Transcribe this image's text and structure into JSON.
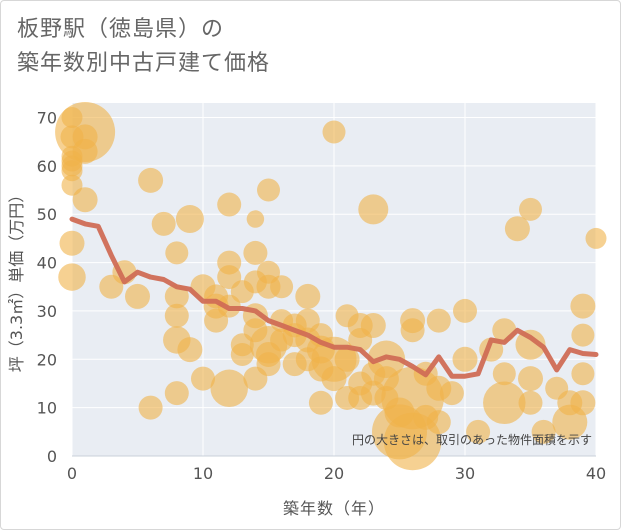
{
  "title_lines": [
    "板野駅（徳島県）の",
    "築年数別中古戸建て価格"
  ],
  "chart_data": {
    "type": "scatter",
    "title": "板野駅（徳島県）の築年数別中古戸建て価格",
    "xlabel": "築年数（年）",
    "ylabel": "坪（3.3㎡）単価（万円）",
    "xlim": [
      0,
      40
    ],
    "ylim": [
      0,
      73
    ],
    "xticks": [
      0,
      10,
      20,
      30,
      40
    ],
    "yticks": [
      0,
      10,
      20,
      30,
      40,
      50,
      60,
      70
    ],
    "grid": true,
    "annotation": "円の大きさは、取引のあった物件面積を示す",
    "colors": {
      "bubble": "#f0b24a",
      "line": "#d06d55",
      "plot_bg": "#e9edf3",
      "grid": "#ffffff"
    },
    "series": [
      {
        "kind": "bubble",
        "points": [
          {
            "x": 0,
            "y": 70,
            "s": 0.22
          },
          {
            "x": 0,
            "y": 66,
            "s": 0.26
          },
          {
            "x": 0,
            "y": 62,
            "s": 0.22
          },
          {
            "x": 0,
            "y": 61,
            "s": 0.22
          },
          {
            "x": 0,
            "y": 60,
            "s": 0.22
          },
          {
            "x": 0,
            "y": 59,
            "s": 0.22
          },
          {
            "x": 0,
            "y": 56,
            "s": 0.22
          },
          {
            "x": 0,
            "y": 44,
            "s": 0.3
          },
          {
            "x": 0,
            "y": 37,
            "s": 0.35
          },
          {
            "x": 1,
            "y": 67,
            "s": 1.0
          },
          {
            "x": 1,
            "y": 66,
            "s": 0.3
          },
          {
            "x": 1,
            "y": 63,
            "s": 0.3
          },
          {
            "x": 1,
            "y": 53,
            "s": 0.3
          },
          {
            "x": 3,
            "y": 35,
            "s": 0.28
          },
          {
            "x": 4,
            "y": 38,
            "s": 0.28
          },
          {
            "x": 5,
            "y": 33,
            "s": 0.3
          },
          {
            "x": 6,
            "y": 57,
            "s": 0.3
          },
          {
            "x": 6,
            "y": 10,
            "s": 0.28
          },
          {
            "x": 7,
            "y": 48,
            "s": 0.28
          },
          {
            "x": 8,
            "y": 42,
            "s": 0.26
          },
          {
            "x": 8,
            "y": 33,
            "s": 0.28
          },
          {
            "x": 8,
            "y": 29,
            "s": 0.28
          },
          {
            "x": 8,
            "y": 24,
            "s": 0.35
          },
          {
            "x": 8,
            "y": 13,
            "s": 0.28
          },
          {
            "x": 9,
            "y": 49,
            "s": 0.36
          },
          {
            "x": 9,
            "y": 22,
            "s": 0.3
          },
          {
            "x": 10,
            "y": 35,
            "s": 0.3
          },
          {
            "x": 10,
            "y": 16,
            "s": 0.28
          },
          {
            "x": 11,
            "y": 33,
            "s": 0.28
          },
          {
            "x": 11,
            "y": 31,
            "s": 0.3
          },
          {
            "x": 11,
            "y": 28,
            "s": 0.28
          },
          {
            "x": 12,
            "y": 52,
            "s": 0.28
          },
          {
            "x": 12,
            "y": 40,
            "s": 0.28
          },
          {
            "x": 12,
            "y": 37,
            "s": 0.28
          },
          {
            "x": 12,
            "y": 31,
            "s": 0.26
          },
          {
            "x": 12,
            "y": 14,
            "s": 0.55
          },
          {
            "x": 13,
            "y": 34,
            "s": 0.26
          },
          {
            "x": 13,
            "y": 23,
            "s": 0.26
          },
          {
            "x": 13,
            "y": 21,
            "s": 0.26
          },
          {
            "x": 14,
            "y": 49,
            "s": 0.15
          },
          {
            "x": 14,
            "y": 42,
            "s": 0.28
          },
          {
            "x": 14,
            "y": 36,
            "s": 0.26
          },
          {
            "x": 14,
            "y": 29,
            "s": 0.3
          },
          {
            "x": 14,
            "y": 26,
            "s": 0.28
          },
          {
            "x": 14,
            "y": 16,
            "s": 0.28
          },
          {
            "x": 15,
            "y": 55,
            "s": 0.26
          },
          {
            "x": 15,
            "y": 38,
            "s": 0.26
          },
          {
            "x": 15,
            "y": 35,
            "s": 0.28
          },
          {
            "x": 15,
            "y": 23,
            "s": 0.55
          },
          {
            "x": 15,
            "y": 21,
            "s": 0.3
          },
          {
            "x": 15,
            "y": 19,
            "s": 0.28
          },
          {
            "x": 16,
            "y": 35,
            "s": 0.26
          },
          {
            "x": 16,
            "y": 28,
            "s": 0.26
          },
          {
            "x": 16,
            "y": 24,
            "s": 0.26
          },
          {
            "x": 17,
            "y": 27,
            "s": 0.28
          },
          {
            "x": 17,
            "y": 25,
            "s": 0.28
          },
          {
            "x": 17,
            "y": 19,
            "s": 0.28
          },
          {
            "x": 18,
            "y": 33,
            "s": 0.3
          },
          {
            "x": 18,
            "y": 28,
            "s": 0.28
          },
          {
            "x": 18,
            "y": 24,
            "s": 0.3
          },
          {
            "x": 18,
            "y": 20,
            "s": 0.28
          },
          {
            "x": 19,
            "y": 25,
            "s": 0.28
          },
          {
            "x": 19,
            "y": 22,
            "s": 0.36
          },
          {
            "x": 19,
            "y": 18,
            "s": 0.3
          },
          {
            "x": 19,
            "y": 11,
            "s": 0.28
          },
          {
            "x": 20,
            "y": 67,
            "s": 0.26
          },
          {
            "x": 20,
            "y": 20,
            "s": 0.7
          },
          {
            "x": 20,
            "y": 16,
            "s": 0.3
          },
          {
            "x": 21,
            "y": 29,
            "s": 0.26
          },
          {
            "x": 21,
            "y": 20,
            "s": 0.3
          },
          {
            "x": 21,
            "y": 12,
            "s": 0.28
          },
          {
            "x": 22,
            "y": 27,
            "s": 0.3
          },
          {
            "x": 22,
            "y": 24,
            "s": 0.28
          },
          {
            "x": 22,
            "y": 15,
            "s": 0.28
          },
          {
            "x": 22,
            "y": 12,
            "s": 0.28
          },
          {
            "x": 23,
            "y": 51,
            "s": 0.4
          },
          {
            "x": 23,
            "y": 27,
            "s": 0.3
          },
          {
            "x": 23,
            "y": 17,
            "s": 0.28
          },
          {
            "x": 23,
            "y": 13,
            "s": 0.3
          },
          {
            "x": 24,
            "y": 20,
            "s": 0.55
          },
          {
            "x": 24,
            "y": 16,
            "s": 0.3
          },
          {
            "x": 24,
            "y": 12,
            "s": 0.28
          },
          {
            "x": 25,
            "y": 5,
            "s": 0.9
          },
          {
            "x": 25,
            "y": 9,
            "s": 0.4
          },
          {
            "x": 26,
            "y": 12,
            "s": 1.05
          },
          {
            "x": 26,
            "y": 28,
            "s": 0.3
          },
          {
            "x": 26,
            "y": 26,
            "s": 0.28
          },
          {
            "x": 26,
            "y": 3,
            "s": 0.95
          },
          {
            "x": 27,
            "y": 17,
            "s": 0.28
          },
          {
            "x": 27,
            "y": 8,
            "s": 0.3
          },
          {
            "x": 28,
            "y": 28,
            "s": 0.28
          },
          {
            "x": 28,
            "y": 14,
            "s": 0.3
          },
          {
            "x": 28,
            "y": 7,
            "s": 0.28
          },
          {
            "x": 29,
            "y": 13,
            "s": 0.28
          },
          {
            "x": 30,
            "y": 30,
            "s": 0.28
          },
          {
            "x": 30,
            "y": 20,
            "s": 0.3
          },
          {
            "x": 31,
            "y": 5,
            "s": 0.28
          },
          {
            "x": 32,
            "y": 22,
            "s": 0.28
          },
          {
            "x": 33,
            "y": 26,
            "s": 0.28
          },
          {
            "x": 33,
            "y": 17,
            "s": 0.26
          },
          {
            "x": 33,
            "y": 11,
            "s": 0.65
          },
          {
            "x": 34,
            "y": 47,
            "s": 0.3
          },
          {
            "x": 35,
            "y": 51,
            "s": 0.26
          },
          {
            "x": 35,
            "y": 23,
            "s": 0.4
          },
          {
            "x": 35,
            "y": 16,
            "s": 0.3
          },
          {
            "x": 35,
            "y": 11,
            "s": 0.28
          },
          {
            "x": 36,
            "y": 5,
            "s": 0.28
          },
          {
            "x": 37,
            "y": 14,
            "s": 0.26
          },
          {
            "x": 38,
            "y": 11,
            "s": 0.3
          },
          {
            "x": 38,
            "y": 7,
            "s": 0.5
          },
          {
            "x": 39,
            "y": 31,
            "s": 0.3
          },
          {
            "x": 39,
            "y": 25,
            "s": 0.26
          },
          {
            "x": 39,
            "y": 17,
            "s": 0.26
          },
          {
            "x": 39,
            "y": 11,
            "s": 0.3
          },
          {
            "x": 40,
            "y": 45,
            "s": 0.22
          }
        ]
      },
      {
        "kind": "line",
        "x": [
          0,
          1,
          2,
          3,
          4,
          5,
          6,
          7,
          8,
          9,
          10,
          11,
          12,
          13,
          14,
          15,
          16,
          17,
          18,
          19,
          20,
          21,
          22,
          23,
          24,
          25,
          26,
          27,
          28,
          29,
          30,
          31,
          32,
          33,
          34,
          35,
          36,
          37,
          38,
          39,
          40
        ],
        "y": [
          49,
          48,
          47.5,
          41.5,
          36,
          38,
          37,
          36.5,
          35,
          34.5,
          32,
          32,
          30.5,
          30.5,
          30,
          28,
          27,
          26,
          25,
          23.5,
          22.5,
          22.5,
          22,
          19.5,
          20.5,
          20,
          18.5,
          16.8,
          20.5,
          16.5,
          16.5,
          17,
          24,
          23.5,
          26,
          24.5,
          22.5,
          17.8,
          22,
          21.2,
          21
        ]
      }
    ]
  }
}
